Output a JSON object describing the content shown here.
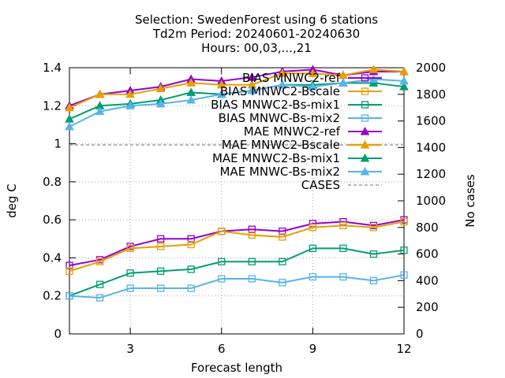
{
  "chart_data": {
    "type": "line",
    "title_lines": [
      "Selection: SwedenForest using     6 stations",
      "Td2m   Period: 20240601-20240630",
      "Hours: 00,03,...,21"
    ],
    "xlabel": "Forecast length",
    "ylabel": "deg C",
    "y2label": "No cases",
    "xlim": [
      1,
      12
    ],
    "ylim": [
      0,
      1.4
    ],
    "y2lim": [
      0,
      2000
    ],
    "xticks": [
      "3",
      "6",
      "9",
      "12"
    ],
    "yticks": [
      "0",
      "0.2",
      "0.4",
      "0.6",
      "0.8",
      "1",
      "1.2",
      "1.4"
    ],
    "y2ticks": [
      "0",
      "200",
      "400",
      "600",
      "800",
      "1000",
      "1200",
      "1400",
      "1600",
      "1800",
      "2000"
    ],
    "grid": true,
    "legend_position": "top-right",
    "x": [
      1,
      2,
      3,
      4,
      5,
      6,
      7,
      8,
      9,
      10,
      11,
      12
    ],
    "series": [
      {
        "name": "BIAS MNWC2-ref",
        "color": "#9400d3",
        "marker": "square",
        "axis": "y",
        "values": [
          0.36,
          0.39,
          0.46,
          0.5,
          0.5,
          0.54,
          0.55,
          0.54,
          0.58,
          0.59,
          0.57,
          0.6
        ]
      },
      {
        "name": "BIAS MNWC2-Bscale",
        "color": "#e69f00",
        "marker": "square",
        "axis": "y",
        "values": [
          0.33,
          0.38,
          0.45,
          0.46,
          0.47,
          0.54,
          0.52,
          0.51,
          0.56,
          0.57,
          0.56,
          0.59
        ]
      },
      {
        "name": "BIAS MNWC2-Bs-mix1",
        "color": "#009e73",
        "marker": "square",
        "axis": "y",
        "values": [
          0.2,
          0.26,
          0.32,
          0.33,
          0.34,
          0.38,
          0.38,
          0.38,
          0.45,
          0.45,
          0.42,
          0.44
        ]
      },
      {
        "name": "BIAS MNWC-Bs-mix2",
        "color": "#56b4e9",
        "marker": "square",
        "axis": "y",
        "values": [
          0.2,
          0.19,
          0.24,
          0.24,
          0.24,
          0.29,
          0.29,
          0.27,
          0.3,
          0.3,
          0.28,
          0.31
        ]
      },
      {
        "name": "MAE MNWC2-ref",
        "color": "#9400d3",
        "marker": "triangle",
        "axis": "y",
        "values": [
          1.2,
          1.26,
          1.28,
          1.3,
          1.34,
          1.33,
          1.35,
          1.38,
          1.39,
          1.36,
          1.38,
          1.38
        ]
      },
      {
        "name": "MAE MNWC2-Bscale",
        "color": "#e69f00",
        "marker": "triangle",
        "axis": "y",
        "values": [
          1.19,
          1.26,
          1.26,
          1.29,
          1.32,
          1.31,
          1.31,
          1.37,
          1.37,
          1.36,
          1.39,
          1.38
        ]
      },
      {
        "name": "MAE MNWC2-Bs-mix1",
        "color": "#009e73",
        "marker": "triangle",
        "axis": "y",
        "values": [
          1.13,
          1.2,
          1.21,
          1.23,
          1.27,
          1.26,
          1.28,
          1.31,
          1.31,
          1.32,
          1.32,
          1.3
        ]
      },
      {
        "name": "MAE MNWC-Bs-mix2",
        "color": "#56b4e9",
        "marker": "triangle",
        "axis": "y",
        "values": [
          1.09,
          1.17,
          1.2,
          1.21,
          1.23,
          1.26,
          1.28,
          1.31,
          1.3,
          1.32,
          1.34,
          1.33
        ]
      },
      {
        "name": "CASES",
        "color": "#a0a0a0",
        "marker": "none",
        "dashed": true,
        "axis": "y2",
        "values": [
          1420,
          1420,
          1420,
          1420,
          1420,
          1420,
          1420,
          1420,
          1420,
          1420,
          1420,
          1420
        ]
      }
    ]
  }
}
